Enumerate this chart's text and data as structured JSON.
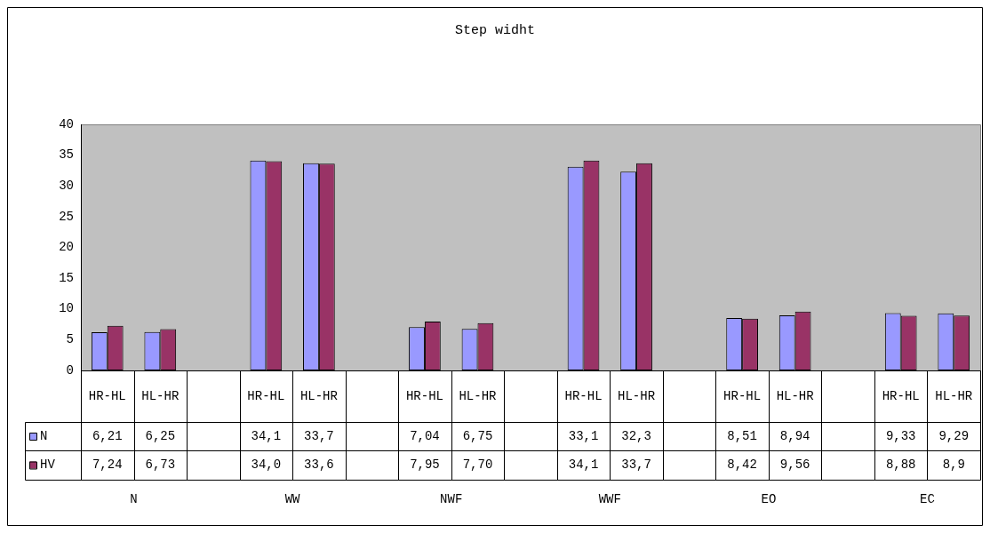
{
  "chart_data": {
    "type": "bar",
    "title": "Step widht",
    "categories": [
      "HR-HL",
      "HL-HR",
      null,
      "HR-HL",
      "HL-HR",
      null,
      "HR-HL",
      "HL-HR",
      null,
      "HR-HL",
      "HL-HR",
      null,
      "HR-HL",
      "HL-HR",
      null,
      "HR-HL",
      "HL-HR"
    ],
    "series": [
      {
        "name": "N",
        "color": "#9999ff",
        "values": [
          6.21,
          6.25,
          null,
          34.1,
          33.7,
          null,
          7.04,
          6.75,
          null,
          33.1,
          32.3,
          null,
          8.51,
          8.94,
          null,
          9.33,
          9.29
        ],
        "value_labels": [
          "6,21",
          "6,25",
          null,
          "34,1",
          "33,7",
          null,
          "7,04",
          "6,75",
          null,
          "33,1",
          "32,3",
          null,
          "8,51",
          "8,94",
          null,
          "9,33",
          "9,29"
        ]
      },
      {
        "name": "HV",
        "color": "#993366",
        "values": [
          7.24,
          6.73,
          null,
          34.0,
          33.6,
          null,
          7.95,
          7.7,
          null,
          34.1,
          33.7,
          null,
          8.42,
          9.56,
          null,
          8.88,
          8.9
        ],
        "value_labels": [
          "7,24",
          "6,73",
          null,
          "34,0",
          "33,6",
          null,
          "7,95",
          "7,70",
          null,
          "34,1",
          "33,7",
          null,
          "8,42",
          "9,56",
          null,
          "8,88",
          "8,9"
        ]
      }
    ],
    "annotations": [
      "N",
      "WW",
      "NWF",
      "WWF",
      "EO",
      "EC"
    ],
    "ylim": [
      0,
      40
    ],
    "yticks": [
      0,
      5,
      10,
      15,
      20,
      25,
      30,
      35,
      40
    ],
    "grid": false,
    "legend": "bottom left"
  }
}
